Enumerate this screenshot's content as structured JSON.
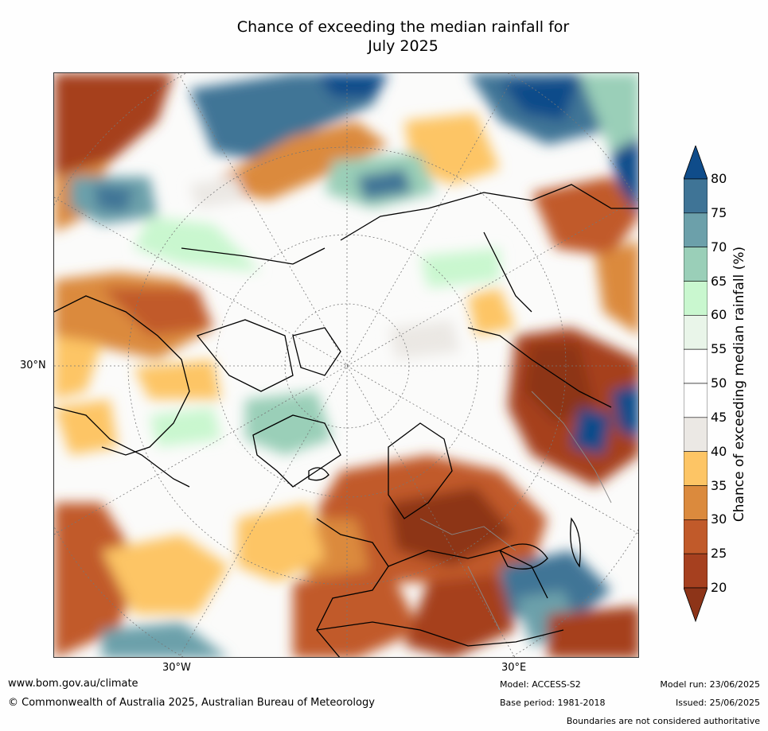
{
  "title_line1": "Chance of exceeding the median rainfall for",
  "title_line2": "July 2025",
  "lat_label": "30°N",
  "lon_labels": [
    "30°W",
    "30°E"
  ],
  "colorbar": {
    "label": "Chance of exceeding median rainfall (%)",
    "ticks": [
      "80",
      "75",
      "70",
      "65",
      "60",
      "55",
      "50",
      "45",
      "40",
      "35",
      "30",
      "25",
      "20"
    ],
    "colors": [
      "#0f4c8a",
      "#3f7496",
      "#6ca0aa",
      "#9acfb8",
      "#c9f7cf",
      "#e9f5e9",
      "#ffffff",
      "#ffffff",
      "#ebe8e4",
      "#fdc565",
      "#db8a3d",
      "#c15a2a",
      "#a6401f",
      "#8d3418"
    ]
  },
  "footer": {
    "url": "www.bom.gov.au/climate",
    "copyright": "© Commonwealth of Australia 2025, Australian Bureau of Meteorology",
    "model": "Model: ACCESS-S2",
    "base_period": "Base period: 1981-2018",
    "model_run": "Model run: 23/06/2025",
    "issued": "Issued: 25/06/2025",
    "disclaimer": "Boundaries are not considered authoritative"
  }
}
